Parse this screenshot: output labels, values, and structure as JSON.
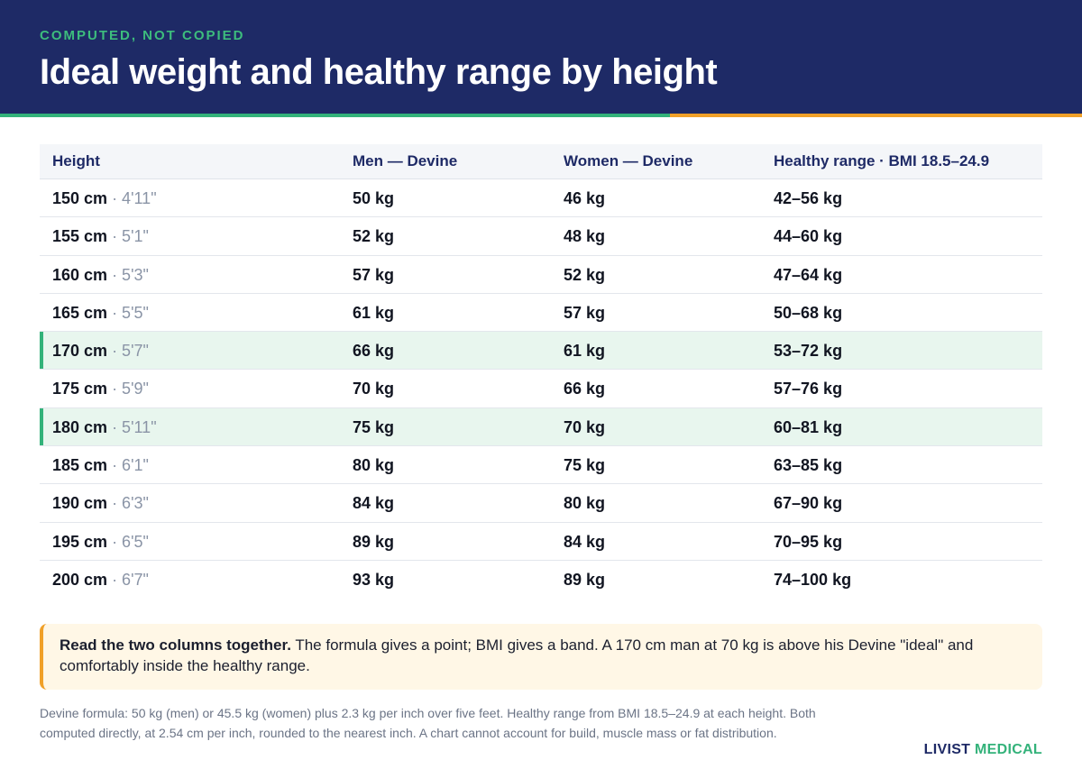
{
  "header": {
    "eyebrow": "COMPUTED, NOT COPIED",
    "title": "Ideal weight and healthy range by height"
  },
  "table": {
    "columns": [
      "Height",
      "Men — Devine",
      "Women — Devine",
      "Healthy range · BMI 18.5–24.9"
    ],
    "rows": [
      {
        "cm": "150 cm",
        "imperial": " · 4'11\"",
        "men": "50 kg",
        "women": "46 kg",
        "range": "42–56 kg",
        "highlight": false
      },
      {
        "cm": "155 cm",
        "imperial": " · 5'1\"",
        "men": "52 kg",
        "women": "48 kg",
        "range": "44–60 kg",
        "highlight": false
      },
      {
        "cm": "160 cm",
        "imperial": " · 5'3\"",
        "men": "57 kg",
        "women": "52 kg",
        "range": "47–64 kg",
        "highlight": false
      },
      {
        "cm": "165 cm",
        "imperial": " · 5'5\"",
        "men": "61 kg",
        "women": "57 kg",
        "range": "50–68 kg",
        "highlight": false
      },
      {
        "cm": "170 cm",
        "imperial": " · 5'7\"",
        "men": "66 kg",
        "women": "61 kg",
        "range": "53–72 kg",
        "highlight": true
      },
      {
        "cm": "175 cm",
        "imperial": " · 5'9\"",
        "men": "70 kg",
        "women": "66 kg",
        "range": "57–76 kg",
        "highlight": false
      },
      {
        "cm": "180 cm",
        "imperial": " · 5'11\"",
        "men": "75 kg",
        "women": "70 kg",
        "range": "60–81 kg",
        "highlight": true
      },
      {
        "cm": "185 cm",
        "imperial": " · 6'1\"",
        "men": "80 kg",
        "women": "75 kg",
        "range": "63–85 kg",
        "highlight": false
      },
      {
        "cm": "190 cm",
        "imperial": " · 6'3\"",
        "men": "84 kg",
        "women": "80 kg",
        "range": "67–90 kg",
        "highlight": false
      },
      {
        "cm": "195 cm",
        "imperial": " · 6'5\"",
        "men": "89 kg",
        "women": "84 kg",
        "range": "70–95 kg",
        "highlight": false
      },
      {
        "cm": "200 cm",
        "imperial": " · 6'7\"",
        "men": "93 kg",
        "women": "89 kg",
        "range": "74–100 kg",
        "highlight": false
      }
    ]
  },
  "note": {
    "lead": "Read the two columns together.",
    "body": " The formula gives a point; BMI gives a band. A 170 cm man at 70 kg is above his Devine \"ideal\" and comfortably inside the healthy range."
  },
  "footnote": "Devine formula: 50 kg (men) or 45.5 kg (women) plus 2.3 kg per inch over five feet. Healthy range from BMI 18.5–24.9 at each height. Both computed directly, at 2.54 cm per inch, rounded to the nearest inch. A chart cannot account for build, muscle mass or fat distribution.",
  "brand": {
    "part1": "LIVIST",
    "part2": " MEDICAL"
  },
  "colors": {
    "navy": "#1e2a66",
    "green": "#33b27a",
    "orange": "#f0a028"
  }
}
